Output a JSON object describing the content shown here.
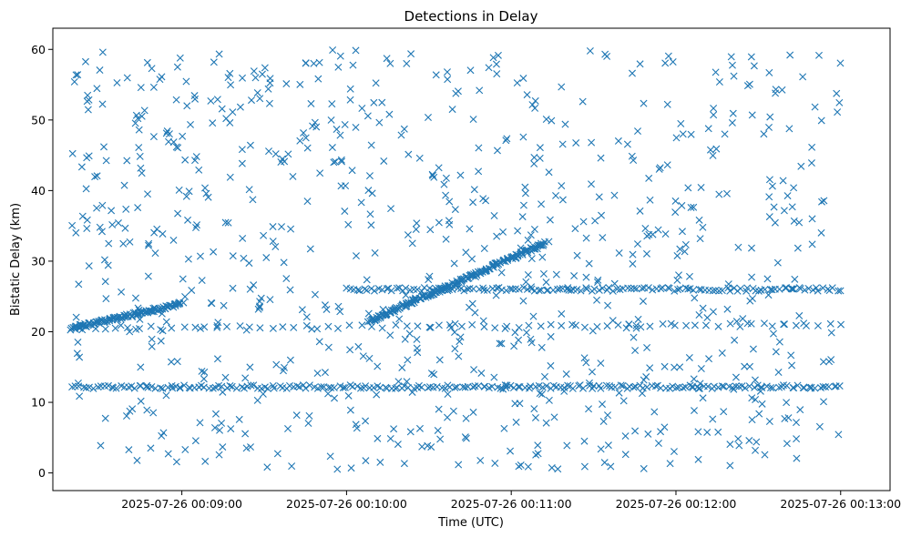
{
  "chart_data": {
    "type": "scatter",
    "title": "Detections in Delay",
    "xlabel": "Time (UTC)",
    "ylabel": "Bistatic Delay (km)",
    "marker": "x",
    "color": "#1f77b4",
    "grid": false,
    "x_range": [
      "2025-07-26 00:08:13",
      "2025-07-26 00:13:18"
    ],
    "ylim": [
      -2.5,
      63
    ],
    "x_ticks": [
      "2025-07-26 00:09:00",
      "2025-07-26 00:10:00",
      "2025-07-26 00:11:00",
      "2025-07-26 00:12:00",
      "2025-07-26 00:13:00"
    ],
    "y_ticks": [
      0,
      10,
      20,
      30,
      40,
      50,
      60
    ],
    "tracks": [
      {
        "x_start": "2025-07-26 00:08:20",
        "x_end": "2025-07-26 00:09:00",
        "y_start": 20.5,
        "y_end": 24.0,
        "points": 110
      },
      {
        "x_start": "2025-07-26 00:10:08",
        "x_end": "2025-07-26 00:11:12",
        "y_start": 21.5,
        "y_end": 32.5,
        "points": 200
      },
      {
        "x_start": "2025-07-26 00:10:00",
        "x_end": "2025-07-26 00:13:00",
        "y_start": 26.0,
        "y_end": 26.0,
        "points": 140
      },
      {
        "x_start": "2025-07-26 00:08:20",
        "x_end": "2025-07-26 00:13:00",
        "y_start": 12.2,
        "y_end": 12.2,
        "points": 220
      },
      {
        "x_start": "2025-07-26 00:08:20",
        "x_end": "2025-07-26 00:13:00",
        "y_start": 20.5,
        "y_end": 21.0,
        "points": 70
      }
    ],
    "clutter": {
      "x_start": "2025-07-26 00:08:20",
      "x_end": "2025-07-26 00:13:00",
      "y_min": 0.5,
      "y_max": 60,
      "points": 820
    }
  }
}
